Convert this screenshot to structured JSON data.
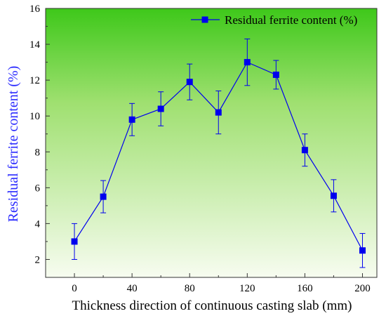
{
  "chart_data": {
    "type": "line",
    "title": "",
    "xlabel": "Thickness direction of continuous casting slab (mm)",
    "ylabel": "Residual ferrite content (%)",
    "xlim": [
      -20,
      210
    ],
    "ylim": [
      1,
      16
    ],
    "xticks": [
      0,
      40,
      80,
      120,
      160,
      200
    ],
    "yticks": [
      2,
      4,
      6,
      8,
      10,
      12,
      14,
      16
    ],
    "grid": false,
    "legend_position": "top-right",
    "series": [
      {
        "name": "Residual ferrite content (%)",
        "x": [
          0,
          20,
          40,
          60,
          80,
          100,
          120,
          140,
          160,
          180,
          200
        ],
        "y": [
          3.0,
          5.5,
          9.8,
          10.4,
          11.9,
          10.2,
          13.0,
          12.3,
          8.1,
          5.55,
          2.5
        ],
        "error": [
          1.0,
          0.9,
          0.9,
          0.95,
          1.0,
          1.2,
          1.3,
          0.8,
          0.9,
          0.9,
          0.95
        ]
      }
    ]
  },
  "colors": {
    "series": "#0000ee",
    "ylabel": "#2a2aff",
    "background_top": "#3ec81a",
    "background_bottom": "#f7fcf0",
    "axis": "#333333"
  }
}
